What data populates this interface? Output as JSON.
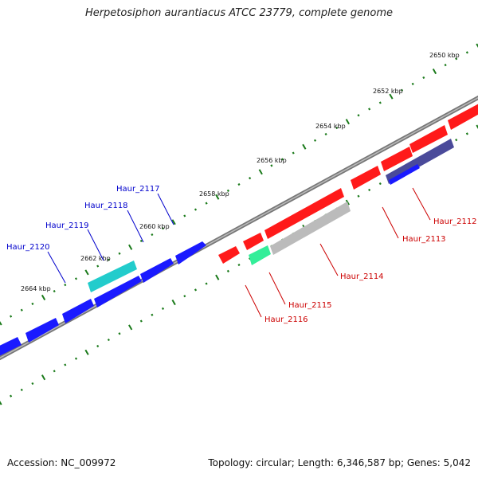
{
  "title": "Herpetosiphon aurantiacus ATCC 23779, complete genome",
  "footer": {
    "accession": "Accession: NC_009972",
    "stats": "Topology: circular; Length: 6,346,587 bp; Genes: 5,042"
  },
  "colors": {
    "forward_gene": "#1a1aff",
    "reverse_gene": "#ff1a1a",
    "haur_2118": "#22cccc",
    "haur_2115": "#33ee99",
    "haur_2114": "#bbbbbb",
    "haur_2112": "#4a4a9a",
    "backbone": "#888888",
    "ticks": "#1a7a1a",
    "forward_label": "#0000cc",
    "reverse_label": "#cc0000"
  },
  "ruler_labels": [
    "2650 kbp",
    "2652 kbp",
    "2654 kbp",
    "2656 kbp",
    "2658 kbp",
    "2660 kbp",
    "2662 kbp",
    "2664 kbp"
  ],
  "gene_labels": {
    "forward": [
      "Haur_2117",
      "Haur_2118",
      "Haur_2119",
      "Haur_2120"
    ],
    "reverse": [
      "Haur_2112",
      "Haur_2113",
      "Haur_2114",
      "Haur_2115",
      "Haur_2116"
    ]
  }
}
